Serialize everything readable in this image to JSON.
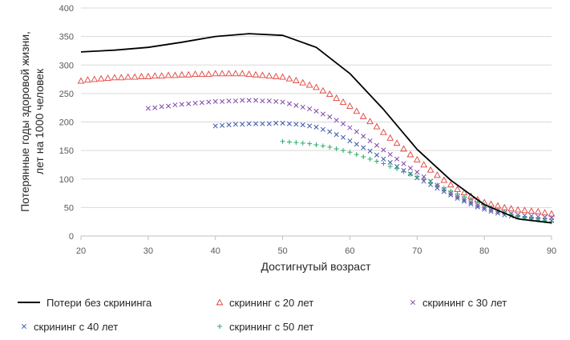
{
  "chart_data": {
    "type": "line",
    "title": "",
    "xlabel": "Достигнутый возраст",
    "ylabel_line1": "Потерянные годы здоровой жизни,",
    "ylabel_line2": "лет на 1000 человек",
    "xlim": [
      20,
      90
    ],
    "ylim": [
      0,
      400
    ],
    "x_ticks": [
      "20",
      "30",
      "40",
      "50",
      "60",
      "70",
      "80",
      "90"
    ],
    "y_ticks": [
      "0",
      "50",
      "100",
      "150",
      "200",
      "250",
      "300",
      "350",
      "400"
    ],
    "grid": true,
    "legend_position": "bottom",
    "series": [
      {
        "name": "Потери без скрининга",
        "marker": "line",
        "color": "#000000",
        "x": [
          20,
          25,
          30,
          35,
          40,
          45,
          50,
          55,
          60,
          65,
          70,
          75,
          80,
          85,
          90
        ],
        "y": [
          323,
          326,
          331,
          340,
          350,
          355,
          352,
          331,
          285,
          222,
          152,
          98,
          55,
          30,
          23
        ]
      },
      {
        "name": "скрининг с 20 лет",
        "marker": "triangle",
        "color": "#e0403a",
        "x": [
          20,
          21,
          22,
          23,
          24,
          25,
          26,
          27,
          28,
          29,
          30,
          31,
          32,
          33,
          34,
          35,
          36,
          37,
          38,
          39,
          40,
          41,
          42,
          43,
          44,
          45,
          46,
          47,
          48,
          49,
          50,
          51,
          52,
          53,
          54,
          55,
          56,
          57,
          58,
          59,
          60,
          61,
          62,
          63,
          64,
          65,
          66,
          67,
          68,
          69,
          70,
          71,
          72,
          73,
          74,
          75,
          76,
          77,
          78,
          79,
          80,
          81,
          82,
          83,
          84,
          85,
          86,
          87,
          88,
          89,
          90
        ],
        "y": [
          272,
          274,
          275,
          276,
          277,
          278,
          278,
          279,
          279,
          280,
          280,
          281,
          281,
          282,
          282,
          283,
          283,
          284,
          284,
          284,
          285,
          285,
          285,
          285,
          285,
          284,
          283,
          282,
          281,
          280,
          279,
          276,
          273,
          269,
          265,
          261,
          255,
          249,
          242,
          235,
          228,
          219,
          210,
          201,
          192,
          182,
          172,
          163,
          153,
          143,
          134,
          125,
          116,
          107,
          98,
          90,
          82,
          76,
          70,
          64,
          59,
          56,
          53,
          50,
          48,
          46,
          45,
          44,
          43,
          41,
          39
        ]
      },
      {
        "name": "скрининг с 30 лет",
        "marker": "x",
        "color": "#8048a8",
        "x": [
          30,
          31,
          32,
          33,
          34,
          35,
          36,
          37,
          38,
          39,
          40,
          41,
          42,
          43,
          44,
          45,
          46,
          47,
          48,
          49,
          50,
          51,
          52,
          53,
          54,
          55,
          56,
          57,
          58,
          59,
          60,
          61,
          62,
          63,
          64,
          65,
          66,
          67,
          68,
          69,
          70,
          71,
          72,
          73,
          74,
          75,
          76,
          77,
          78,
          79,
          80,
          81,
          82,
          83,
          84,
          85,
          86,
          87,
          88,
          89,
          90
        ],
        "y": [
          224,
          225,
          227,
          228,
          230,
          231,
          232,
          233,
          234,
          235,
          236,
          236,
          237,
          237,
          238,
          238,
          238,
          237,
          237,
          236,
          235,
          232,
          229,
          226,
          223,
          219,
          214,
          209,
          203,
          197,
          190,
          183,
          175,
          167,
          159,
          151,
          143,
          135,
          127,
          119,
          112,
          104,
          96,
          89,
          82,
          75,
          69,
          64,
          59,
          54,
          50,
          46,
          43,
          41,
          39,
          37,
          36,
          35,
          34,
          33,
          32
        ]
      },
      {
        "name": "скрининг с 40 лет",
        "marker": "x",
        "color": "#3c58a8",
        "x": [
          40,
          41,
          42,
          43,
          44,
          45,
          46,
          47,
          48,
          49,
          50,
          51,
          52,
          53,
          54,
          55,
          56,
          57,
          58,
          59,
          60,
          61,
          62,
          63,
          64,
          65,
          66,
          67,
          68,
          69,
          70,
          71,
          72,
          73,
          74,
          75,
          76,
          77,
          78,
          79,
          80,
          81,
          82,
          83,
          84,
          85,
          86,
          87,
          88,
          89,
          90
        ],
        "y": [
          193,
          194,
          195,
          196,
          196,
          197,
          197,
          197,
          197,
          198,
          198,
          197,
          196,
          195,
          193,
          191,
          187,
          183,
          178,
          173,
          167,
          161,
          155,
          149,
          142,
          135,
          129,
          122,
          115,
          109,
          102,
          96,
          90,
          84,
          78,
          72,
          66,
          61,
          56,
          51,
          47,
          43,
          40,
          37,
          35,
          33,
          31,
          30,
          29,
          28,
          27
        ]
      },
      {
        "name": "скрининг с 50 лет",
        "marker": "plus",
        "color": "#2aaa6a",
        "x": [
          50,
          51,
          52,
          53,
          54,
          55,
          56,
          57,
          58,
          59,
          60,
          61,
          62,
          63,
          64,
          65,
          66,
          67,
          68,
          69,
          70,
          71,
          72,
          73,
          74,
          75,
          76,
          77,
          78,
          79,
          80,
          81,
          82,
          83,
          84,
          85,
          86,
          87,
          88,
          89,
          90
        ],
        "y": [
          166,
          165,
          164,
          163,
          162,
          160,
          158,
          156,
          153,
          150,
          147,
          143,
          139,
          135,
          131,
          127,
          122,
          118,
          113,
          108,
          104,
          99,
          94,
          89,
          84,
          79,
          74,
          69,
          64,
          59,
          55,
          50,
          46,
          42,
          38,
          35,
          32,
          30,
          28,
          27,
          25
        ]
      }
    ]
  }
}
